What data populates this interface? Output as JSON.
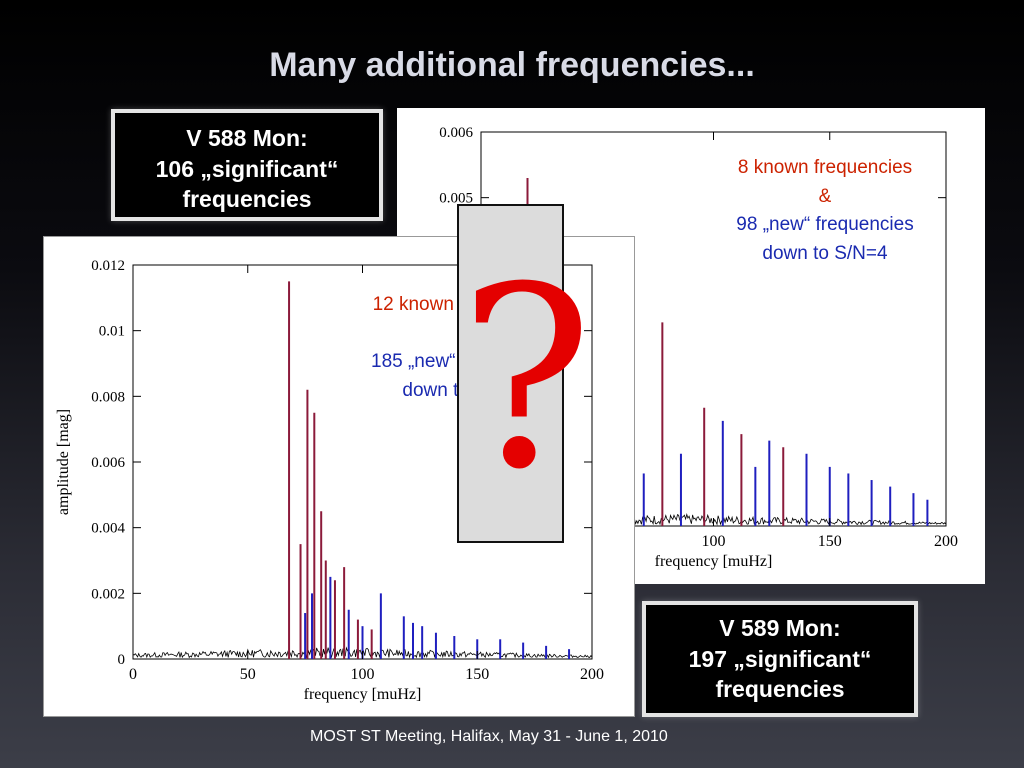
{
  "slide": {
    "title": "Many additional frequencies...",
    "footer": "MOST ST Meeting, Halifax, May 31 - June 1, 2010",
    "question_mark": "?"
  },
  "labels": {
    "v588": {
      "line1": "V 588 Mon:",
      "line2": "106 „significant“",
      "line3": "frequencies"
    },
    "v589": {
      "line1": "V 589 Mon:",
      "line2": "197 „significant“",
      "line3": "frequencies"
    }
  },
  "annotations": {
    "back": {
      "known": "8 known frequencies",
      "amp": "&",
      "new": "98 „new“ frequencies",
      "limit": "down to S/N=4"
    },
    "front": {
      "known": "12 known frequencies",
      "amp": "&",
      "new": "185 „new“ frequencies",
      "limit": "down to S/N=4"
    }
  },
  "colors": {
    "known": "#8b1a3a",
    "new": "#1f1fbf",
    "residual": "#000000",
    "question": "#e40000"
  },
  "chart_data": [
    {
      "type": "line",
      "xlabel": "frequency [muHz]",
      "xlim": [
        0,
        200
      ],
      "ylim": [
        0,
        0.006
      ],
      "xticks": [
        "100",
        "150",
        "200"
      ],
      "yticks": [
        "0.006",
        "0.005"
      ],
      "series": [
        {
          "x": [
            20,
            42,
            60,
            78,
            96,
            112,
            130
          ],
          "values": [
            0.0053,
            0.0042,
            0.0022,
            0.0031,
            0.0018,
            0.0014,
            0.0012
          ]
        },
        {
          "x": [
            52,
            64,
            70,
            86,
            104,
            118,
            124,
            140,
            150,
            158,
            168,
            176,
            186,
            192
          ],
          "values": [
            0.0012,
            0.0009,
            0.0008,
            0.0011,
            0.0016,
            0.0009,
            0.0013,
            0.0011,
            0.0009,
            0.0008,
            0.0007,
            0.0006,
            0.0005,
            0.0004
          ]
        }
      ]
    },
    {
      "type": "line",
      "xlabel": "frequency [muHz]",
      "ylabel": "amplitude [mag]",
      "xlim": [
        0,
        200
      ],
      "ylim": [
        0,
        0.012
      ],
      "xticks": [
        "0",
        "50",
        "100",
        "150",
        "200"
      ],
      "yticks": [
        "0",
        "0.002",
        "0.004",
        "0.006",
        "0.008",
        "0.01",
        "0.012"
      ],
      "series": [
        {
          "x": [
            68,
            73,
            76,
            79,
            82,
            84,
            88,
            92,
            98,
            104
          ],
          "values": [
            0.0115,
            0.0035,
            0.0082,
            0.0075,
            0.0045,
            0.003,
            0.0024,
            0.0028,
            0.0012,
            0.0009
          ]
        },
        {
          "x": [
            75,
            78,
            86,
            94,
            100,
            108,
            118,
            122,
            126,
            132,
            140,
            150,
            160,
            170,
            180,
            190
          ],
          "values": [
            0.0014,
            0.002,
            0.0025,
            0.0015,
            0.001,
            0.002,
            0.0013,
            0.0011,
            0.001,
            0.0008,
            0.0007,
            0.0006,
            0.0006,
            0.0005,
            0.0004,
            0.0003
          ]
        }
      ]
    }
  ]
}
